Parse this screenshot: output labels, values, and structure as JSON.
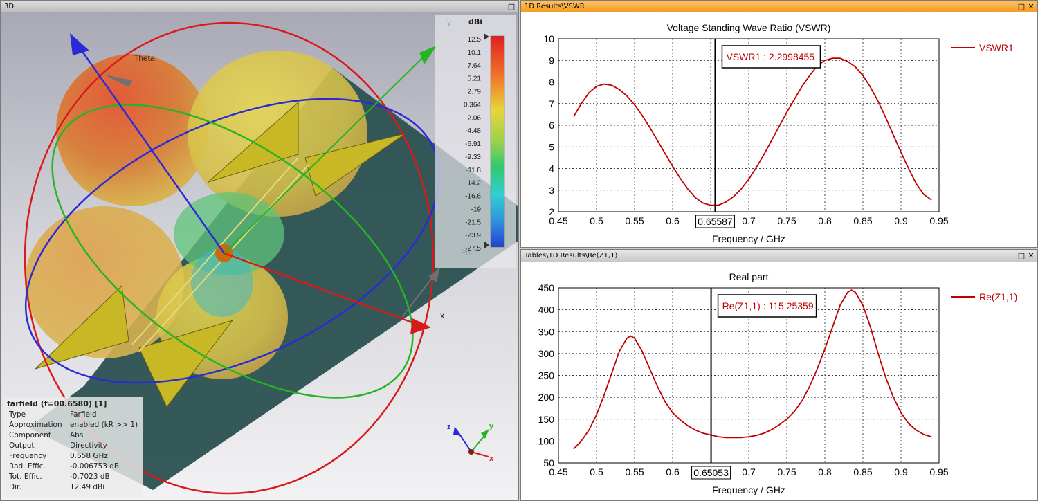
{
  "view3d": {
    "title": "3D",
    "colorbar": {
      "unit": "dBi",
      "ticks": [
        "12.5",
        "10.1",
        "7.64",
        "5.21",
        "2.79",
        "0.364",
        "-2.06",
        "-4.48",
        "-6.91",
        "-9.33",
        "-11.8",
        "-14.2",
        "-16.6",
        "-19",
        "-21.5",
        "-23.9",
        "-27.5"
      ]
    },
    "axis_labels": {
      "theta": "Theta",
      "phi": "Phi",
      "x": "x",
      "y": "y"
    },
    "triad": {
      "z": "z",
      "y": "y",
      "x": "x"
    },
    "info": {
      "header": "farfield (f=00.6580) [1]",
      "rows": [
        {
          "k": "Type",
          "v": "Farfield"
        },
        {
          "k": "Approximation",
          "v": "enabled (kR >> 1)"
        },
        {
          "k": "Component",
          "v": "Abs"
        },
        {
          "k": "Output",
          "v": "Directivity"
        },
        {
          "k": "Frequency",
          "v": "0.658 GHz"
        },
        {
          "k": "Rad. Effic.",
          "v": "-0.006753 dB"
        },
        {
          "k": "Tot. Effic.",
          "v": "-0.7023 dB"
        },
        {
          "k": "Dir.",
          "v": "12.49 dBi"
        }
      ]
    },
    "window_controls": {
      "max": "□"
    }
  },
  "vswr_pane": {
    "title": "1D Results\\VSWR",
    "max": "□",
    "close": "✕"
  },
  "re_pane": {
    "title": "Tables\\1D Results\\Re(Z1,1)",
    "max": "□",
    "close": "✕"
  },
  "chart_data": [
    {
      "type": "line",
      "title": "Voltage Standing Wave Ratio (VSWR)",
      "xlabel": "Frequency / GHz",
      "ylabel": "",
      "xlim": [
        0.45,
        0.95
      ],
      "ylim": [
        2,
        10
      ],
      "xticks": [
        0.45,
        0.5,
        0.55,
        0.6,
        0.65,
        0.7,
        0.75,
        0.8,
        0.85,
        0.9,
        0.95
      ],
      "yticks": [
        2,
        3,
        4,
        5,
        6,
        7,
        8,
        9,
        10
      ],
      "grid": true,
      "legend": "right",
      "marker": {
        "x": 0.65587,
        "label": "0.65587",
        "annotation": "VSWR1 : 2.2998455"
      },
      "series": [
        {
          "name": "VSWR1",
          "color": "#c00000",
          "x": [
            0.47,
            0.48,
            0.49,
            0.5,
            0.51,
            0.52,
            0.53,
            0.54,
            0.55,
            0.56,
            0.57,
            0.58,
            0.59,
            0.6,
            0.61,
            0.62,
            0.63,
            0.64,
            0.65,
            0.66,
            0.67,
            0.68,
            0.69,
            0.7,
            0.71,
            0.72,
            0.73,
            0.74,
            0.75,
            0.76,
            0.77,
            0.78,
            0.79,
            0.8,
            0.81,
            0.82,
            0.83,
            0.84,
            0.85,
            0.86,
            0.87,
            0.88,
            0.89,
            0.9,
            0.91,
            0.92,
            0.93,
            0.94
          ],
          "y": [
            6.4,
            7.0,
            7.5,
            7.8,
            7.9,
            7.85,
            7.65,
            7.35,
            6.95,
            6.45,
            5.9,
            5.3,
            4.7,
            4.1,
            3.55,
            3.05,
            2.65,
            2.4,
            2.3,
            2.3,
            2.45,
            2.7,
            3.05,
            3.5,
            4.05,
            4.65,
            5.3,
            5.95,
            6.6,
            7.2,
            7.8,
            8.3,
            8.75,
            9.0,
            9.1,
            9.1,
            8.95,
            8.7,
            8.3,
            7.75,
            7.1,
            6.35,
            5.55,
            4.75,
            4.0,
            3.3,
            2.8,
            2.55
          ]
        }
      ]
    },
    {
      "type": "line",
      "title": "Real part",
      "xlabel": "Frequency / GHz",
      "ylabel": "",
      "xlim": [
        0.45,
        0.95
      ],
      "ylim": [
        50,
        450
      ],
      "xticks": [
        0.45,
        0.5,
        0.55,
        0.6,
        0.65,
        0.7,
        0.75,
        0.8,
        0.85,
        0.9,
        0.95
      ],
      "yticks": [
        50,
        100,
        150,
        200,
        250,
        300,
        350,
        400,
        450
      ],
      "grid": true,
      "legend": "right",
      "marker": {
        "x": 0.65053,
        "label": "0.65053",
        "annotation": "Re(Z1,1) : 115.25359"
      },
      "series": [
        {
          "name": "Re(Z1,1)",
          "color": "#c00000",
          "x": [
            0.47,
            0.48,
            0.49,
            0.5,
            0.51,
            0.52,
            0.53,
            0.54,
            0.545,
            0.55,
            0.56,
            0.57,
            0.58,
            0.59,
            0.6,
            0.61,
            0.62,
            0.63,
            0.64,
            0.65,
            0.66,
            0.67,
            0.68,
            0.69,
            0.7,
            0.71,
            0.72,
            0.73,
            0.74,
            0.75,
            0.76,
            0.77,
            0.78,
            0.79,
            0.8,
            0.81,
            0.82,
            0.83,
            0.835,
            0.84,
            0.85,
            0.86,
            0.87,
            0.88,
            0.89,
            0.9,
            0.91,
            0.92,
            0.93,
            0.94
          ],
          "y": [
            82,
            100,
            125,
            160,
            205,
            255,
            305,
            335,
            340,
            335,
            305,
            265,
            225,
            190,
            165,
            148,
            135,
            125,
            118,
            114,
            110,
            108,
            108,
            108,
            110,
            113,
            118,
            126,
            137,
            150,
            168,
            192,
            225,
            265,
            310,
            360,
            410,
            440,
            445,
            440,
            410,
            360,
            300,
            245,
            200,
            165,
            140,
            125,
            115,
            110
          ]
        }
      ]
    }
  ]
}
